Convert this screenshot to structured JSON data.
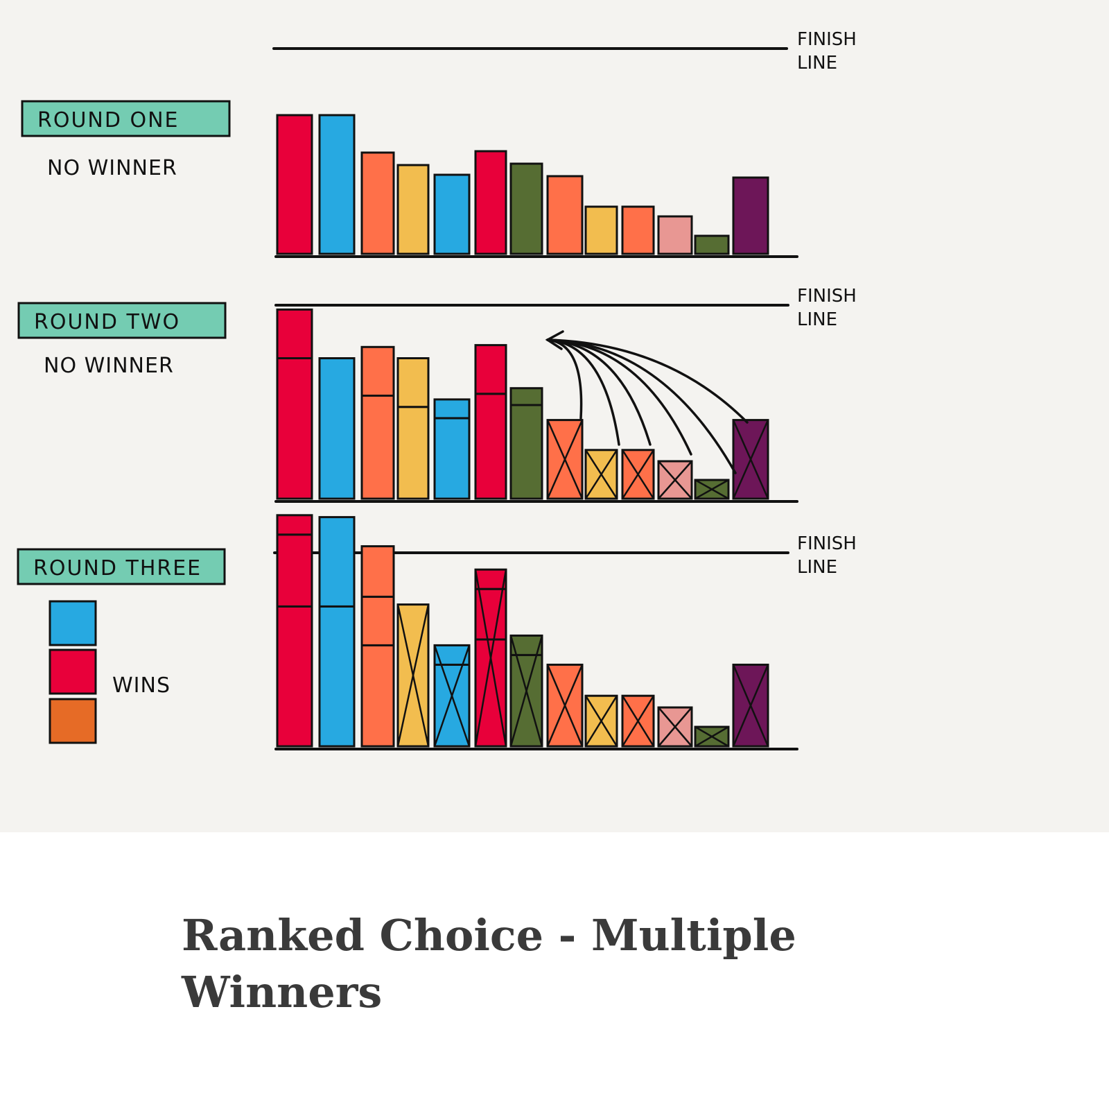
{
  "finish_line_label": [
    "FINISH",
    "LINE"
  ],
  "colors": {
    "red": "#e8003a",
    "blue": "#27a9e1",
    "coral": "#ff7049",
    "yellow": "#f2bd4f",
    "olive": "#566d33",
    "pink": "#e89793",
    "purple": "#6d1658",
    "orange": "#e66b26",
    "teal": "#74ccb2"
  },
  "rounds": [
    {
      "title": "ROUND ONE",
      "status": "NO WINNER",
      "candidates": [
        {
          "color": "red",
          "base": 1.0
        },
        {
          "color": "blue",
          "base": 1.0
        },
        {
          "color": "coral",
          "base": 0.73
        },
        {
          "color": "yellow",
          "base": 0.64
        },
        {
          "color": "blue",
          "base": 0.57
        },
        {
          "color": "red",
          "base": 0.74
        },
        {
          "color": "olive",
          "base": 0.65
        },
        {
          "color": "coral",
          "base": 0.56
        },
        {
          "color": "yellow",
          "base": 0.34
        },
        {
          "color": "coral",
          "base": 0.34
        },
        {
          "color": "pink",
          "base": 0.27
        },
        {
          "color": "olive",
          "base": 0.13
        },
        {
          "color": "purple",
          "base": 0.55
        }
      ]
    },
    {
      "title": "ROUND TWO",
      "status": "NO WINNER",
      "candidates": [
        {
          "color": "red",
          "base": 0.75,
          "added": 0.26
        },
        {
          "color": "blue",
          "base": 0.75
        },
        {
          "color": "coral",
          "base": 0.55,
          "added": 0.26
        },
        {
          "color": "yellow",
          "base": 0.49,
          "added": 0.26
        },
        {
          "color": "blue",
          "base": 0.43,
          "added": 0.1
        },
        {
          "color": "red",
          "base": 0.56,
          "added": 0.26
        },
        {
          "color": "olive",
          "base": 0.5,
          "added": 0.09
        },
        {
          "color": "coral",
          "base": 0.42,
          "eliminated": true
        },
        {
          "color": "yellow",
          "base": 0.26,
          "eliminated": true
        },
        {
          "color": "coral",
          "base": 0.26,
          "eliminated": true
        },
        {
          "color": "pink",
          "base": 0.2,
          "eliminated": true
        },
        {
          "color": "olive",
          "base": 0.1,
          "eliminated": true
        },
        {
          "color": "purple",
          "base": 0.42,
          "eliminated": true
        }
      ]
    },
    {
      "title": "ROUND THREE",
      "status": "WINS",
      "winners": [
        "blue",
        "red",
        "orange"
      ],
      "candidates": [
        {
          "color": "red",
          "base": 0.72,
          "added": [
            0.37,
            0.1
          ]
        },
        {
          "color": "blue",
          "base": 0.72,
          "added": [
            0.46
          ]
        },
        {
          "color": "coral",
          "base": 0.52,
          "added": [
            0.25,
            0.26
          ]
        },
        {
          "color": "yellow",
          "base": 0.73,
          "eliminated": true
        },
        {
          "color": "blue",
          "base": 0.42,
          "added": [
            0.1
          ],
          "eliminated": true
        },
        {
          "color": "red",
          "base": 0.55,
          "added": [
            0.26,
            0.1
          ],
          "eliminated": true
        },
        {
          "color": "olive",
          "base": 0.47,
          "added": [
            0.1
          ],
          "eliminated": true
        },
        {
          "color": "coral",
          "base": 0.42,
          "eliminated": true
        },
        {
          "color": "yellow",
          "base": 0.26,
          "eliminated": true
        },
        {
          "color": "coral",
          "base": 0.26,
          "eliminated": true
        },
        {
          "color": "pink",
          "base": 0.2,
          "eliminated": true
        },
        {
          "color": "olive",
          "base": 0.1,
          "eliminated": true
        },
        {
          "color": "purple",
          "base": 0.42,
          "eliminated": true
        }
      ]
    }
  ],
  "caption": "Ranked Choice -  Multiple Winners"
}
